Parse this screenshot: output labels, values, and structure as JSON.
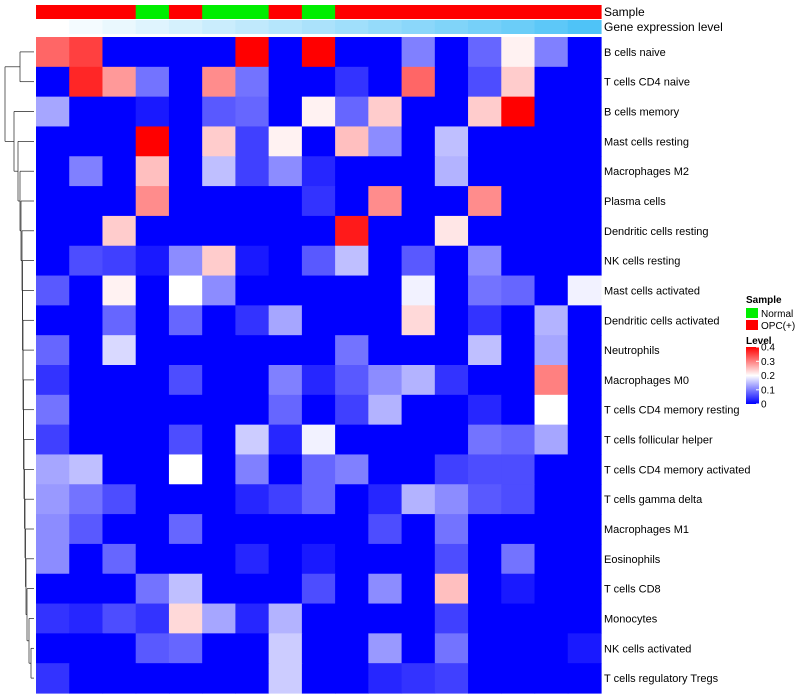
{
  "chart_data": {
    "type": "heatmap",
    "title": "",
    "annotation_labels": {
      "sample": "Sample",
      "gene_expression": "Gene expression level"
    },
    "legend": {
      "sample_title": "Sample",
      "sample_entries": [
        {
          "label": "Normal",
          "color": "#00ee00"
        },
        {
          "label": "OPC(+)",
          "color": "#ff0000"
        }
      ],
      "level_title": "Level",
      "level_ticks": [
        "0.4",
        "0.3",
        "0.2",
        "0.1",
        "0"
      ],
      "level_tick_values": [
        0.4,
        0.3,
        0.2,
        0.1,
        0
      ],
      "placement": "right"
    },
    "color_scale": {
      "low": "#0000ff",
      "mid": "#ffffff",
      "high": "#ff0000",
      "min": 0,
      "max": 0.4
    },
    "samples": [
      "OPC(+)",
      "OPC(+)",
      "OPC(+)",
      "Normal",
      "OPC(+)",
      "Normal",
      "Normal",
      "OPC(+)",
      "Normal",
      "OPC(+)",
      "OPC(+)",
      "OPC(+)",
      "OPC(+)",
      "OPC(+)",
      "OPC(+)",
      "OPC(+)",
      "OPC(+)"
    ],
    "gene_expression_level": [
      0.0,
      0.06,
      0.12,
      0.18,
      0.24,
      0.3,
      0.36,
      0.42,
      0.48,
      0.54,
      0.6,
      0.66,
      0.72,
      0.78,
      0.84,
      0.92,
      1.0
    ],
    "rows": [
      "B cells naive",
      "T cells CD4 naive",
      "B cells memory",
      "Mast cells resting",
      "Macrophages M2",
      "Plasma cells",
      "Dendritic cells resting",
      "NK cells resting",
      "Mast cells activated",
      "Dendritic cells activated",
      "Neutrophils",
      "Macrophages M0",
      "T cells CD4 memory resting",
      "T cells follicular helper",
      "T cells CD4 memory activated",
      "T cells gamma delta",
      "Macrophages M1",
      "Eosinophils",
      "T cells CD8",
      "Monocytes",
      "NK cells activated",
      "T cells regulatory  Tregs"
    ],
    "values": [
      [
        0.32,
        0.35,
        0,
        0,
        0,
        0,
        0.4,
        0,
        0.4,
        0,
        0,
        0.1,
        0,
        0.08,
        0.21,
        0.1,
        0
      ],
      [
        0,
        0.37,
        0.28,
        0.09,
        0,
        0.29,
        0.09,
        0,
        0,
        0.04,
        0,
        0.32,
        0,
        0.06,
        0.24,
        0,
        0
      ],
      [
        0.13,
        0,
        0,
        0.02,
        0,
        0.07,
        0.08,
        0,
        0.21,
        0.08,
        0.24,
        0,
        0,
        0.24,
        0.4,
        0,
        0
      ],
      [
        0,
        0,
        0,
        0.4,
        0,
        0.24,
        0.05,
        0.21,
        0,
        0.25,
        0.11,
        0,
        0.15,
        0,
        0,
        0,
        0
      ],
      [
        0,
        0.1,
        0,
        0.25,
        0,
        0.15,
        0.05,
        0.11,
        0.03,
        0,
        0,
        0,
        0.14,
        0,
        0,
        0,
        0
      ],
      [
        0,
        0,
        0,
        0.29,
        0,
        0,
        0,
        0,
        0.04,
        0,
        0.29,
        0,
        0,
        0.29,
        0,
        0,
        0
      ],
      [
        0,
        0,
        0.24,
        0,
        0,
        0,
        0,
        0,
        0,
        0.38,
        0,
        0,
        0.22,
        0,
        0,
        0,
        0
      ],
      [
        0,
        0.06,
        0.05,
        0.02,
        0.11,
        0.24,
        0.02,
        0,
        0.07,
        0.15,
        0,
        0.07,
        0,
        0.11,
        0,
        0,
        0
      ],
      [
        0.07,
        0,
        0.21,
        0,
        0.2,
        0.11,
        0,
        0,
        0,
        0,
        0,
        0.19,
        0,
        0.09,
        0.08,
        0,
        0.19
      ],
      [
        0,
        0,
        0.08,
        0,
        0.08,
        0,
        0.04,
        0.13,
        0,
        0,
        0,
        0.23,
        0,
        0.04,
        0,
        0.14,
        0
      ],
      [
        0.08,
        0,
        0.17,
        0,
        0,
        0,
        0,
        0,
        0,
        0.09,
        0,
        0,
        0,
        0.15,
        0,
        0.13,
        0
      ],
      [
        0.04,
        0,
        0,
        0,
        0.06,
        0,
        0,
        0.1,
        0.03,
        0.07,
        0.11,
        0.14,
        0.04,
        0,
        0,
        0.3,
        0
      ],
      [
        0.09,
        0,
        0,
        0,
        0,
        0,
        0,
        0.08,
        0,
        0.05,
        0.14,
        0,
        0,
        0.03,
        0,
        0.2,
        0
      ],
      [
        0.05,
        0,
        0,
        0,
        0.06,
        0,
        0.16,
        0.03,
        0.19,
        0,
        0,
        0,
        0,
        0.09,
        0.08,
        0.13,
        0
      ],
      [
        0.13,
        0.15,
        0,
        0,
        0.2,
        0,
        0.1,
        0,
        0.08,
        0.1,
        0,
        0,
        0.05,
        0.06,
        0.06,
        0,
        0
      ],
      [
        0.12,
        0.09,
        0.06,
        0,
        0,
        0,
        0.03,
        0.05,
        0.08,
        0,
        0.03,
        0.14,
        0.11,
        0.07,
        0.06,
        0,
        0
      ],
      [
        0.11,
        0.07,
        0,
        0,
        0.08,
        0,
        0,
        0,
        0,
        0,
        0.06,
        0,
        0.09,
        0,
        0,
        0,
        0
      ],
      [
        0.11,
        0,
        0.08,
        0,
        0,
        0,
        0.03,
        0,
        0.02,
        0,
        0,
        0,
        0.06,
        0,
        0.09,
        0,
        0
      ],
      [
        0,
        0,
        0,
        0.09,
        0.15,
        0,
        0,
        0,
        0.06,
        0,
        0.11,
        0,
        0.25,
        0,
        0.02,
        0,
        0
      ],
      [
        0.04,
        0.03,
        0.06,
        0.04,
        0.23,
        0.13,
        0.03,
        0.14,
        0,
        0,
        0,
        0,
        0.05,
        0,
        0,
        0,
        0
      ],
      [
        0,
        0,
        0,
        0.07,
        0.08,
        0,
        0,
        0.16,
        0,
        0,
        0.12,
        0,
        0.09,
        0,
        0,
        0,
        0.02
      ],
      [
        0.04,
        0,
        0,
        0,
        0,
        0,
        0,
        0.16,
        0,
        0,
        0.03,
        0.04,
        0.05,
        0,
        0,
        0,
        0
      ]
    ]
  }
}
